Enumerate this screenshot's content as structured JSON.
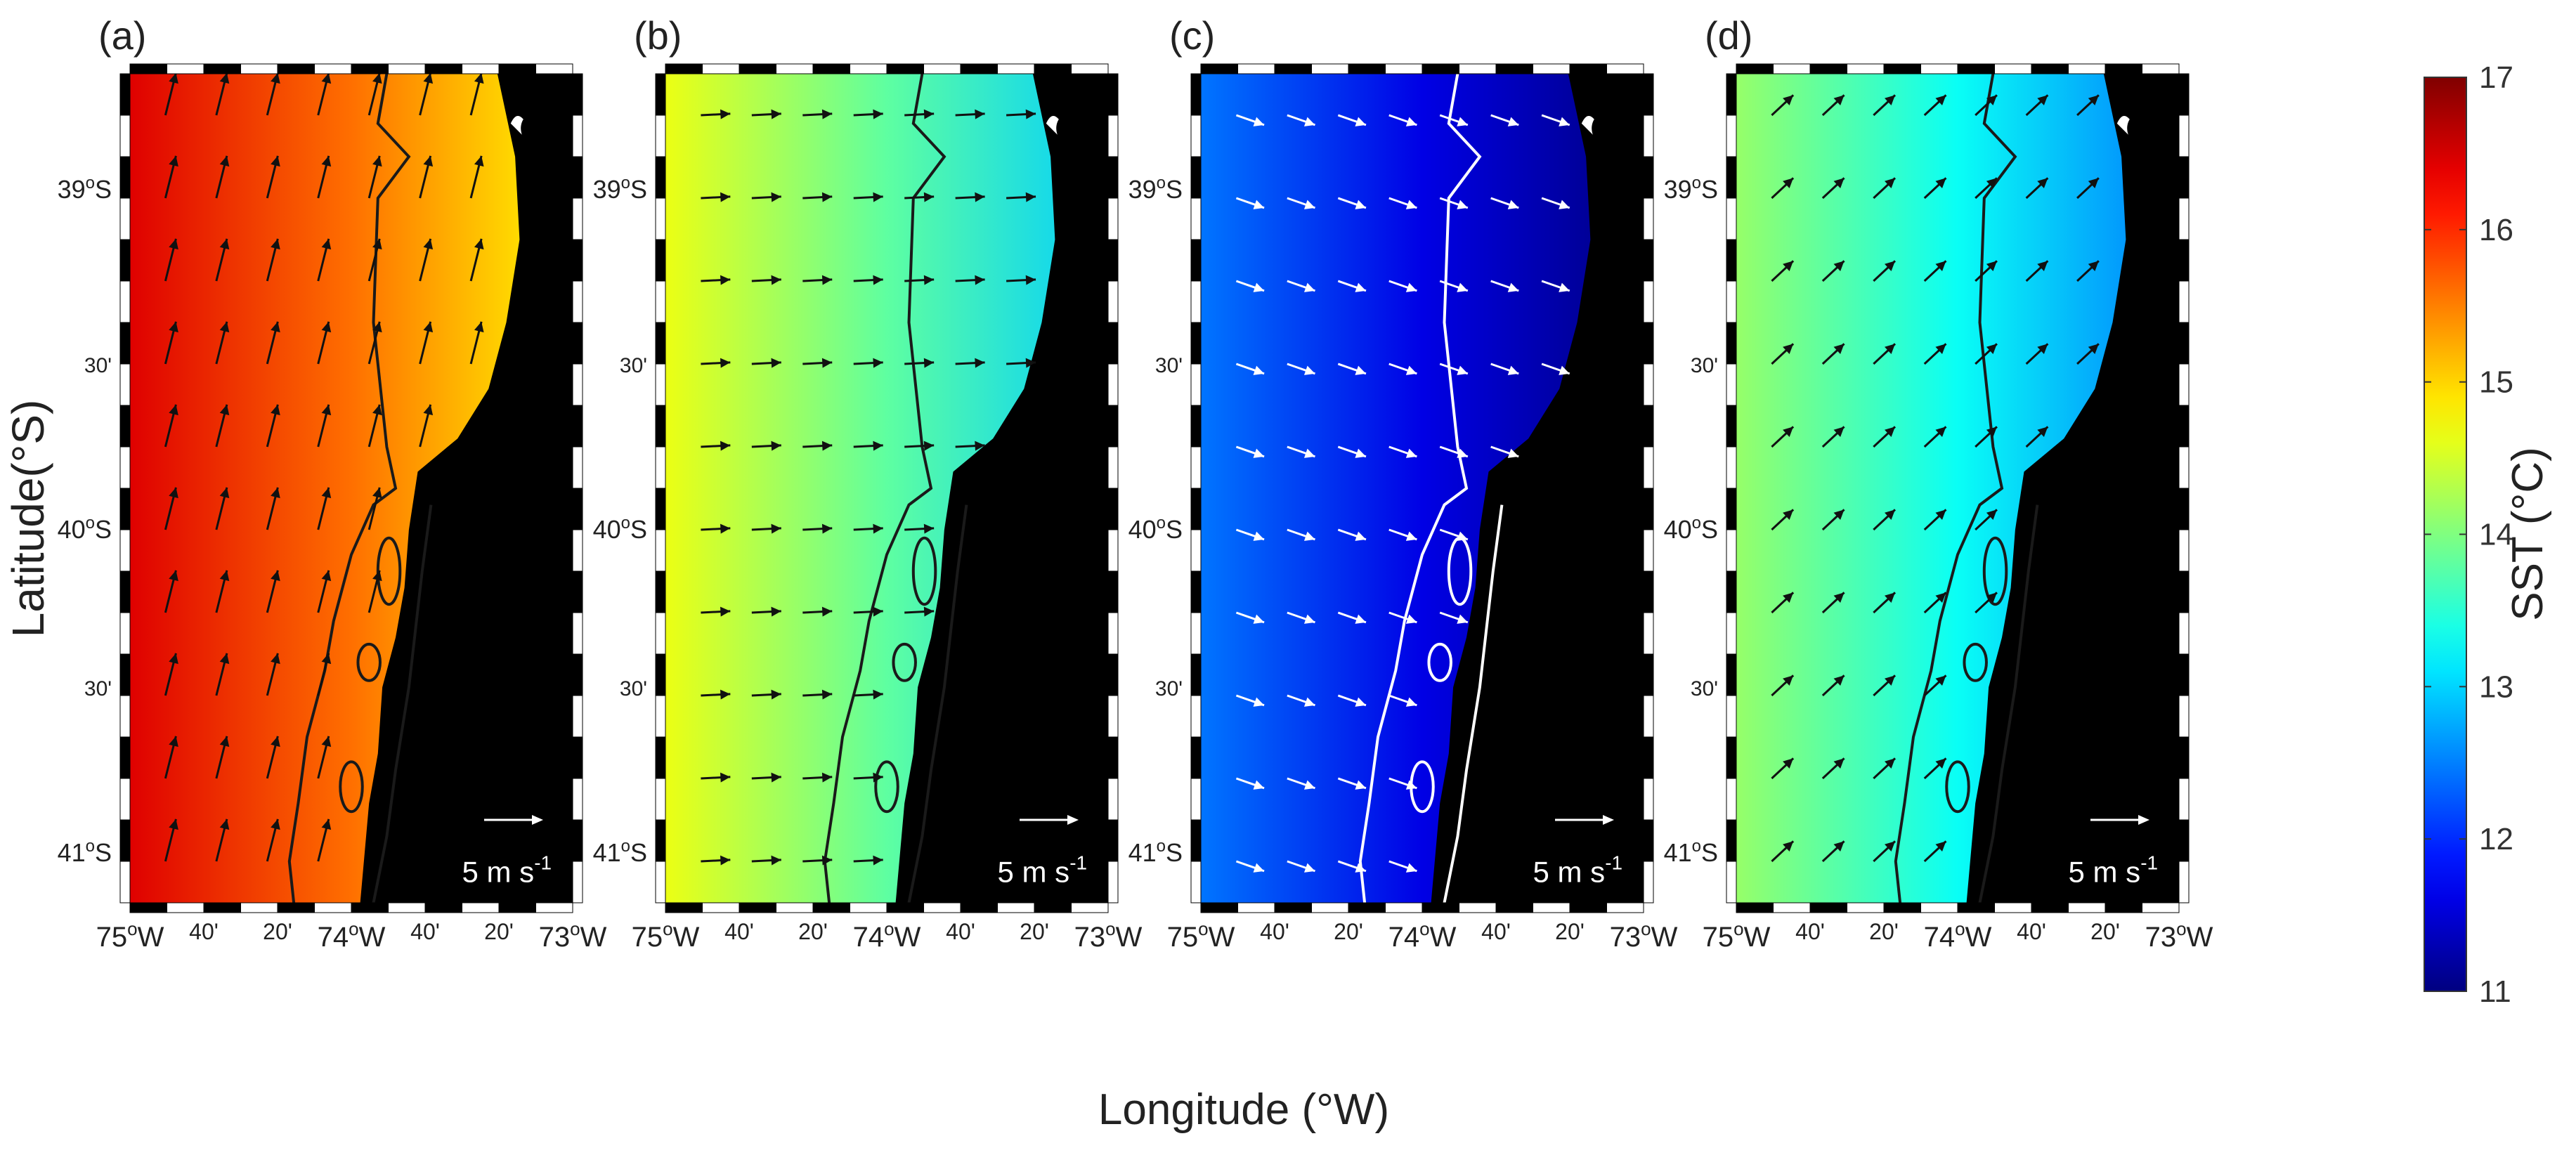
{
  "figure": {
    "x_label": "Longitude (°W)",
    "y_label": "Latitude(°S)",
    "colorbar_label": "SST (°C)",
    "colorbar_ticks": [
      "17",
      "16",
      "15",
      "14",
      "13",
      "12",
      "11"
    ],
    "colorbar_range": [
      11,
      17
    ],
    "colormap": "jet",
    "lon_ticks": [
      "75oW",
      "40'",
      "20'",
      "74oW",
      "40'",
      "20'",
      "73oW"
    ],
    "lat_ticks": [
      "39oS",
      "30'",
      "40oS",
      "30'",
      "41oS"
    ],
    "panels": [
      {
        "label": "(a)",
        "mean_sst": 15.6,
        "wind_direction": "north-northeast",
        "contour_color": "#1a1a1a",
        "arrow_color": "#111111"
      },
      {
        "label": "(b)",
        "mean_sst": 13.8,
        "wind_direction": "east",
        "contour_color": "#1a1a1a",
        "arrow_color": "#111111"
      },
      {
        "label": "(c)",
        "mean_sst": 11.6,
        "wind_direction": "east-southeast",
        "contour_color": "#ffffff",
        "arrow_color": "#ffffff"
      },
      {
        "label": "(d)",
        "mean_sst": 13.3,
        "wind_direction": "northeast",
        "contour_color": "#1a1a1a",
        "arrow_color": "#111111"
      }
    ],
    "wind_scale": {
      "label": "5 m s",
      "exponent": "-1",
      "color": "#ffffff"
    },
    "land_color": "#000000"
  }
}
